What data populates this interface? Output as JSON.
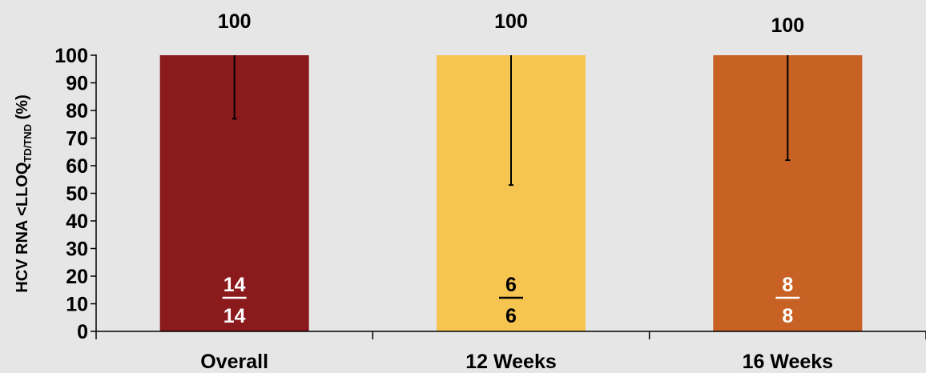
{
  "chart_data": {
    "type": "bar",
    "categories": [
      "Overall",
      "12 Weeks",
      "16 Weeks"
    ],
    "values": [
      100,
      100,
      100
    ],
    "value_labels": [
      "100",
      "100",
      "100"
    ],
    "error_bars": [
      {
        "low": 77,
        "high": 100
      },
      {
        "low": 53,
        "high": 100
      },
      {
        "low": 62,
        "high": 100
      }
    ],
    "fractions": [
      {
        "numerator": "14",
        "denominator": "14"
      },
      {
        "numerator": "6",
        "denominator": "6"
      },
      {
        "numerator": "8",
        "denominator": "8"
      }
    ],
    "colors": [
      "#8b1a1c",
      "#f5c451",
      "#c86124"
    ],
    "fraction_colors": [
      "#ffffff",
      "#000000",
      "#ffffff"
    ],
    "ylabel_main": "HCV RNA <LLOQ",
    "ylabel_sub": "TD/TND",
    "ylabel_suffix": " (%)",
    "yticks": [
      0,
      10,
      20,
      30,
      40,
      50,
      60,
      70,
      80,
      90,
      100
    ],
    "ylim": [
      0,
      100
    ],
    "grid": false,
    "legend": false
  }
}
